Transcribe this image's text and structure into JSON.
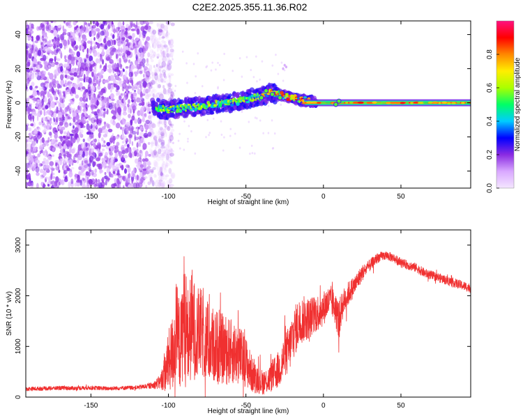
{
  "chart_data": [
    {
      "type": "heatmap",
      "title": "C2E2.2025.355.11.36.R02",
      "xlabel": "Height of straight line (km)",
      "ylabel": "Frequency (Hz)",
      "xlim": [
        -192,
        95
      ],
      "ylim": [
        -50,
        48
      ],
      "xticks": [
        -150,
        -100,
        -50,
        0,
        50
      ],
      "xtick_labels": [
        "-150",
        "-100",
        "-50",
        "0",
        "50"
      ],
      "yticks": [
        -40,
        -20,
        0,
        20,
        40
      ],
      "ytick_labels": [
        "-40",
        "-20",
        "0",
        "20",
        "40"
      ],
      "colorbar": {
        "label": "Normalized spectral amplitude",
        "range": [
          0,
          1
        ],
        "ticks": [
          0.0,
          0.2,
          0.4,
          0.6,
          0.8
        ],
        "tick_labels": [
          "0.0",
          "0.2",
          "0.4",
          "0.6",
          "0.8"
        ],
        "colors": [
          "#f4e6ff",
          "#d9a8ff",
          "#8a2be2",
          "#0000ff",
          "#00ccff",
          "#00ff66",
          "#aaff00",
          "#ffee00",
          "#ff8800",
          "#ff0000",
          "#ff1080"
        ]
      },
      "regions": [
        {
          "name": "noise",
          "x_range": [
            -192,
            -105
          ],
          "freq_range": [
            -50,
            48
          ],
          "amplitude": 0.1
        },
        {
          "name": "signal-trace",
          "points": [
            [
              -110,
              -3
            ],
            [
              -100,
              -4
            ],
            [
              -90,
              -3
            ],
            [
              -80,
              -2
            ],
            [
              -70,
              -1
            ],
            [
              -60,
              0
            ],
            [
              -50,
              2
            ],
            [
              -40,
              4
            ],
            [
              -35,
              6
            ],
            [
              -30,
              5
            ],
            [
              -20,
              3
            ],
            [
              -10,
              1
            ],
            [
              0,
              0
            ],
            [
              10,
              0
            ],
            [
              95,
              0
            ]
          ]
        }
      ]
    },
    {
      "type": "line",
      "xlabel": "Height of straight line (km)",
      "ylabel": "SNR (10 * v/v)",
      "xlim": [
        -192,
        95
      ],
      "ylim": [
        0,
        3300
      ],
      "xticks": [
        -150,
        -100,
        -50,
        0,
        50
      ],
      "xtick_labels": [
        "-150",
        "-100",
        "-50",
        "0",
        "50"
      ],
      "yticks": [
        0,
        1000,
        2000,
        3000
      ],
      "ytick_labels": [
        "0",
        "1000",
        "2000",
        "3000"
      ],
      "series": [
        {
          "name": "SNR",
          "color": "#f03030",
          "x": [
            -192,
            -180,
            -170,
            -160,
            -150,
            -140,
            -130,
            -120,
            -110,
            -105,
            -102,
            -100,
            -97,
            -95,
            -92,
            -90,
            -87,
            -85,
            -82,
            -80,
            -75,
            -70,
            -65,
            -60,
            -55,
            -50,
            -47,
            -45,
            -42,
            -40,
            -38,
            -35,
            -32,
            -30,
            -27,
            -25,
            -22,
            -20,
            -17,
            -15,
            -12,
            -10,
            -7,
            -5,
            -2,
            0,
            2,
            5,
            7,
            10,
            12,
            15,
            20,
            25,
            30,
            35,
            40,
            45,
            50,
            55,
            60,
            65,
            70,
            75,
            80,
            85,
            90,
            95
          ],
          "y": [
            160,
            170,
            180,
            175,
            185,
            170,
            180,
            190,
            230,
            300,
            500,
            700,
            900,
            1300,
            1000,
            1700,
            1100,
            1500,
            1200,
            1300,
            1100,
            1000,
            950,
            900,
            850,
            700,
            500,
            400,
            350,
            300,
            300,
            350,
            450,
            500,
            650,
            800,
            950,
            1200,
            1400,
            1500,
            1550,
            1550,
            1600,
            1650,
            1700,
            1750,
            1850,
            1900,
            1800,
            1500,
            1800,
            2000,
            2200,
            2450,
            2600,
            2750,
            2800,
            2750,
            2650,
            2600,
            2550,
            2450,
            2400,
            2350,
            2300,
            2250,
            2200,
            2150
          ],
          "noise": [
            40,
            40,
            40,
            40,
            40,
            40,
            40,
            40,
            60,
            150,
            400,
            600,
            800,
            1000,
            900,
            1200,
            1000,
            1100,
            900,
            900,
            800,
            750,
            700,
            650,
            600,
            500,
            400,
            320,
            280,
            250,
            250,
            280,
            320,
            350,
            400,
            450,
            480,
            500,
            500,
            480,
            450,
            420,
            400,
            380,
            360,
            340,
            320,
            300,
            320,
            400,
            300,
            250,
            200,
            160,
            120,
            100,
            90,
            90,
            90,
            90,
            90,
            90,
            90,
            90,
            90,
            90,
            90,
            90
          ]
        }
      ]
    }
  ]
}
